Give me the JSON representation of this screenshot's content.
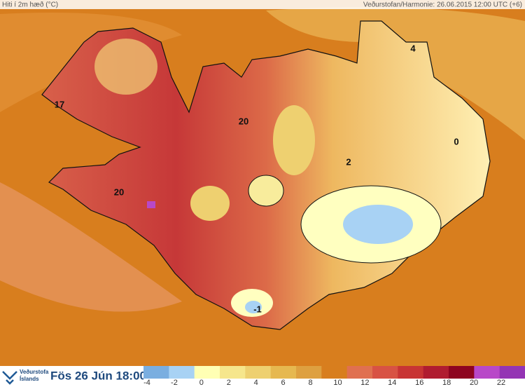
{
  "header": {
    "title": "Hiti í 2m hæð (°C)",
    "source": "Veðurstofan/Harmonie: 26.06.2015 12:00 UTC (+6)"
  },
  "map_labels": [
    "17",
    "20",
    "20",
    "2",
    "0",
    "4",
    "-1"
  ],
  "footer": {
    "logo_line1": "Veðurstofa",
    "logo_line2": "Íslands",
    "valid_time": "Fös 26 Jún 18:00"
  },
  "legend": {
    "labels": [
      "-4",
      "-2",
      "0",
      "2",
      "4",
      "6",
      "8",
      "10",
      "12",
      "14",
      "16",
      "18",
      "20",
      "22"
    ],
    "colors": [
      "#7aaee0",
      "#a8d2f4",
      "#ffffb4",
      "#f6e68c",
      "#eed070",
      "#e6b850",
      "#dea040",
      "#d87e1e",
      "#e07050",
      "#d85244",
      "#c83434",
      "#b01c30",
      "#8e0420",
      "#b848c8",
      "#9434b4"
    ]
  }
}
